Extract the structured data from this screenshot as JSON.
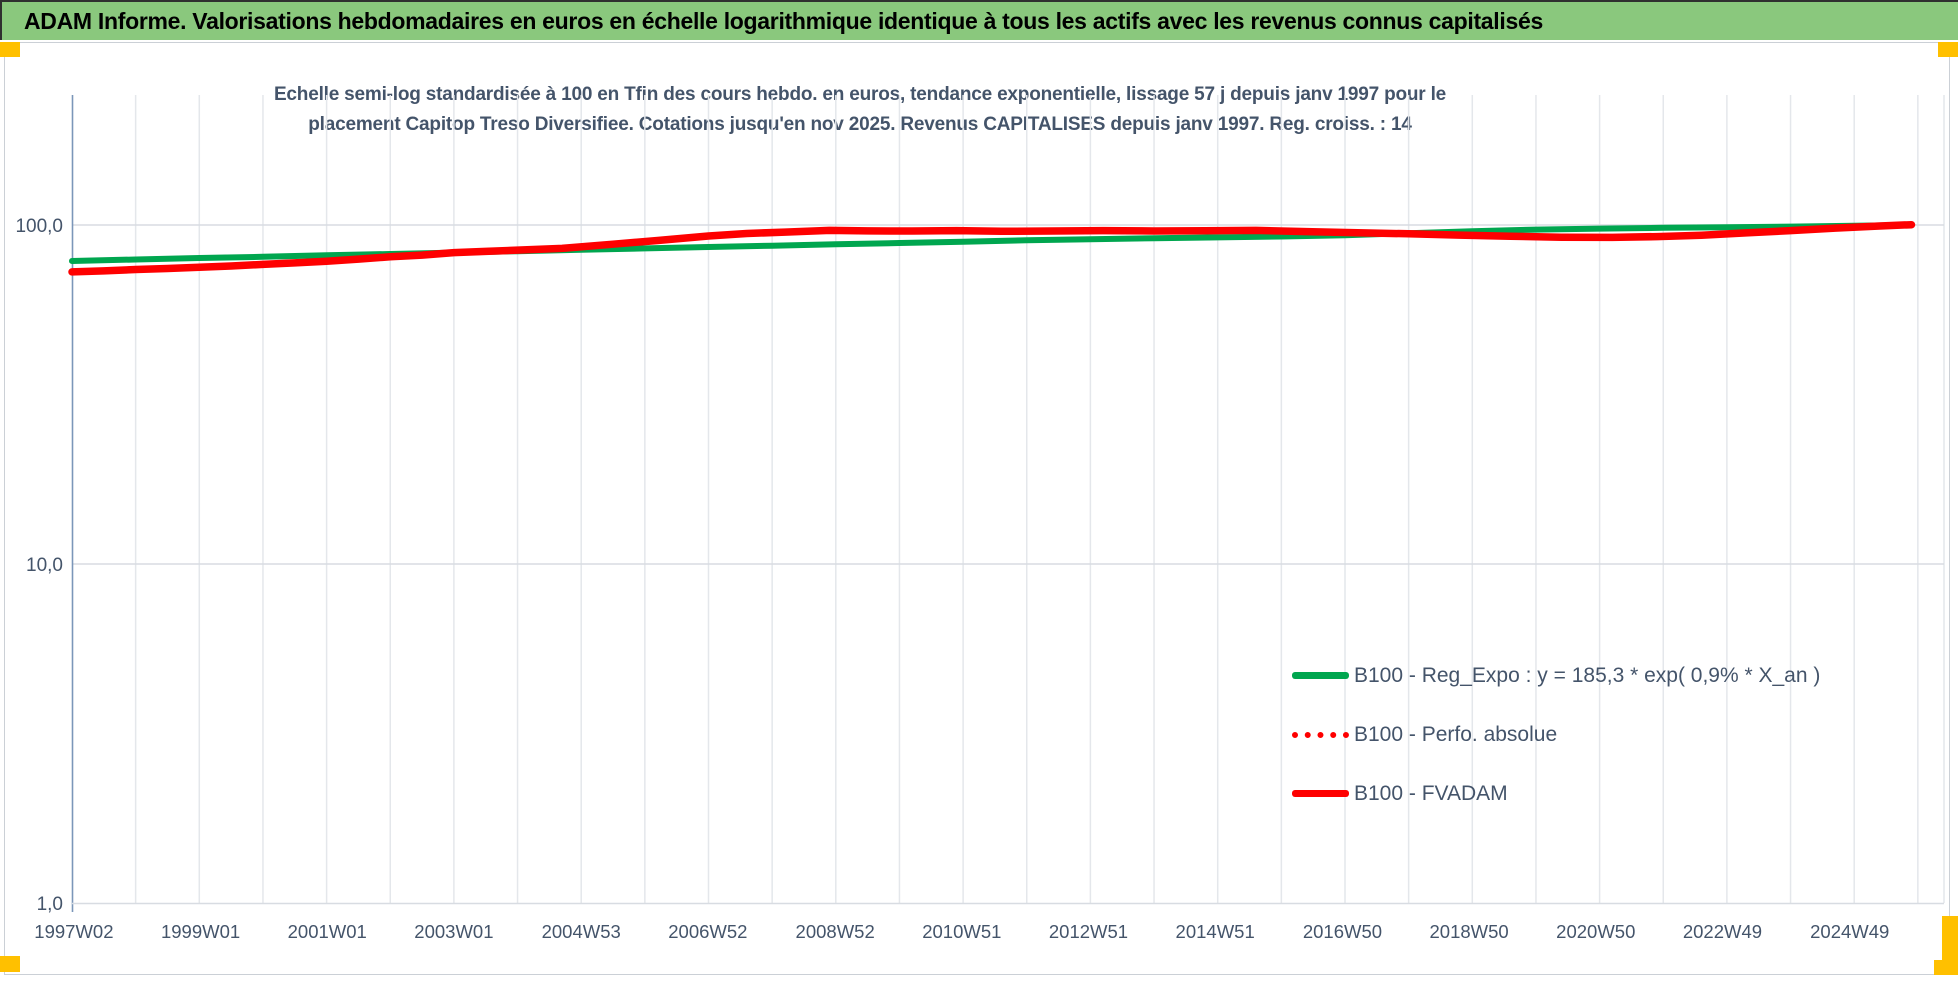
{
  "header": {
    "title": "ADAM Informe. Valorisations hebdomadaires en euros en échelle logarithmique identique à tous les actifs avec les revenus connus capitalisés"
  },
  "colors": {
    "accent_marker": "#FFC000",
    "header_bg": "#8AC87D",
    "title_text": "#44546A",
    "axis_line": "#7B96B9",
    "grid_major": "#D8DCE2",
    "grid_minor": "#E4E7EB",
    "series_green": "#00A64F",
    "series_red": "#FE0000"
  },
  "chart_data": {
    "type": "line",
    "title_line1": "Echelle semi-log standardisée à 100 en Tfin des cours hebdo. en euros, tendance exponentielle, lissage 57 j depuis janv 1997 pour le",
    "title_line2": "placement Capitop Treso Diversifiee. Cotations jusqu'en nov 2025. Revenus CAPITALISES depuis janv 1997. Reg. croiss. : 14",
    "y_scale": "log",
    "ylim": [
      1,
      240
    ],
    "grid": true,
    "legend_position": "inside-bottom-right",
    "y_ticks": [
      {
        "label": "100,0",
        "value": 100
      },
      {
        "label": "10,0",
        "value": 10
      },
      {
        "label": "1,0",
        "value": 1
      }
    ],
    "x_ticks": [
      {
        "label": "1997W02",
        "year": 1997.03
      },
      {
        "label": "1999W01",
        "year": 1999.02
      },
      {
        "label": "2001W01",
        "year": 2001.01
      },
      {
        "label": "2003W01",
        "year": 2003.0
      },
      {
        "label": "2004W53",
        "year": 2005.0
      },
      {
        "label": "2006W52",
        "year": 2006.99
      },
      {
        "label": "2008W52",
        "year": 2008.99
      },
      {
        "label": "2010W51",
        "year": 2010.98
      },
      {
        "label": "2012W51",
        "year": 2012.97
      },
      {
        "label": "2014W51",
        "year": 2014.96
      },
      {
        "label": "2016W50",
        "year": 2016.96
      },
      {
        "label": "2018W50",
        "year": 2018.95
      },
      {
        "label": "2020W50",
        "year": 2020.94
      },
      {
        "label": "2022W49",
        "year": 2022.93
      },
      {
        "label": "2024W49",
        "year": 2024.93
      }
    ],
    "series": [
      {
        "name": "B100 - Reg_Expo : y = 185,3 * exp( 0,9% *  X_an )",
        "color": "#00A64F",
        "style": "solid",
        "width": 6,
        "points": [
          [
            1997.0,
            78.3
          ],
          [
            1998,
            79.1
          ],
          [
            1999,
            79.9
          ],
          [
            2000,
            80.6
          ],
          [
            2001,
            81.4
          ],
          [
            2002,
            82.1
          ],
          [
            2003,
            82.9
          ],
          [
            2004,
            83.7
          ],
          [
            2005,
            84.5
          ],
          [
            2006,
            85.3
          ],
          [
            2007,
            86.1
          ],
          [
            2008,
            86.9
          ],
          [
            2009,
            87.7
          ],
          [
            2010,
            88.5
          ],
          [
            2011,
            89.3
          ],
          [
            2012,
            90.1
          ],
          [
            2013,
            90.8
          ],
          [
            2014,
            91.4
          ],
          [
            2015,
            91.9
          ],
          [
            2016,
            92.5
          ],
          [
            2017,
            93.3
          ],
          [
            2018,
            94.6
          ],
          [
            2019,
            95.9
          ],
          [
            2020,
            96.9
          ],
          [
            2021,
            97.6
          ],
          [
            2022,
            98.1
          ],
          [
            2023,
            98.5
          ],
          [
            2024,
            98.9
          ],
          [
            2025,
            99.5
          ],
          [
            2025.9,
            100.0
          ]
        ]
      },
      {
        "name": "B100 - Perfo. absolue",
        "color": "#FE0000",
        "style": "dotted",
        "width": 6,
        "coincides_with": "B100 - FVADAM"
      },
      {
        "name": "B100 - FVADAM",
        "color": "#FE0000",
        "style": "solid",
        "width": 7.5,
        "points": [
          [
            1997.0,
            72.7
          ],
          [
            1997.5,
            73.2
          ],
          [
            1998,
            73.9
          ],
          [
            1998.5,
            74.4
          ],
          [
            1999,
            75.1
          ],
          [
            1999.5,
            75.7
          ],
          [
            2000,
            76.5
          ],
          [
            2000.5,
            77.3
          ],
          [
            2001,
            78.2
          ],
          [
            2001.5,
            79.3
          ],
          [
            2002,
            80.6
          ],
          [
            2002.5,
            81.5
          ],
          [
            2003,
            82.9
          ],
          [
            2003.5,
            83.6
          ],
          [
            2004,
            84.3
          ],
          [
            2004.7,
            85.3
          ],
          [
            2005.5,
            87.8
          ],
          [
            2006.2,
            90.0
          ],
          [
            2007,
            92.8
          ],
          [
            2007.6,
            94.4
          ],
          [
            2008.2,
            95.3
          ],
          [
            2008.9,
            96.4
          ],
          [
            2009.5,
            96.1
          ],
          [
            2010.2,
            96.0
          ],
          [
            2010.9,
            96.3
          ],
          [
            2011.6,
            95.8
          ],
          [
            2012.4,
            96.0
          ],
          [
            2013.2,
            96.3
          ],
          [
            2014.0,
            96.0
          ],
          [
            2014.8,
            96.2
          ],
          [
            2015.6,
            96.4
          ],
          [
            2016.4,
            95.6
          ],
          [
            2017.2,
            94.9
          ],
          [
            2018.0,
            94.2
          ],
          [
            2018.8,
            93.4
          ],
          [
            2019.6,
            92.7
          ],
          [
            2020.4,
            92.0
          ],
          [
            2021.2,
            91.9
          ],
          [
            2021.9,
            92.4
          ],
          [
            2022.6,
            93.3
          ],
          [
            2023.3,
            94.8
          ],
          [
            2024.0,
            96.3
          ],
          [
            2024.7,
            97.9
          ],
          [
            2025.4,
            99.3
          ],
          [
            2025.9,
            100.2
          ]
        ]
      }
    ]
  }
}
